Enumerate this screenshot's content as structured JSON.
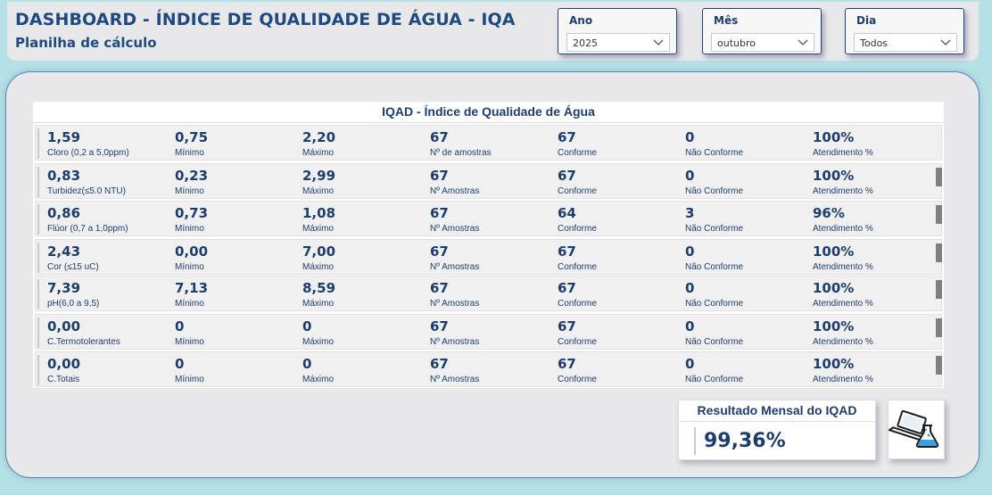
{
  "header": {
    "title": "DASHBOARD - ÍNDICE DE QUALIDADE DE ÁGUA - IQA",
    "subtitle": "Planilha de cálculo"
  },
  "filters": {
    "ano": {
      "label": "Ano",
      "value": "2025"
    },
    "mes": {
      "label": "Mês",
      "value": "outubro"
    },
    "dia": {
      "label": "Dia",
      "value": "Todos"
    }
  },
  "table": {
    "title": "IQAD - Índice de Qualidade de Água",
    "rows": [
      {
        "param_value": "1,59",
        "param_label": "Cloro (0,2 a 5,0ppm)",
        "min_value": "0,75",
        "min_label": "Mínimo",
        "max_value": "2,20",
        "max_label": "Máximo",
        "samples_value": "67",
        "samples_label": "Nº de amostras",
        "conf_value": "67",
        "conf_label": "Conforme",
        "nconf_value": "0",
        "nconf_label": "Não Conforme",
        "att_value": "100%",
        "att_label": "Atendimento %"
      },
      {
        "param_value": "0,83",
        "param_label": "Turbidez(≤5.0 NTU)",
        "min_value": "0,23",
        "min_label": "Mínimo",
        "max_value": "2,99",
        "max_label": "Máximo",
        "samples_value": "67",
        "samples_label": "Nº Amostras",
        "conf_value": "67",
        "conf_label": "Conforme",
        "nconf_value": "0",
        "nconf_label": "Não Conforme",
        "att_value": "100%",
        "att_label": "Atendimento %"
      },
      {
        "param_value": "0,86",
        "param_label": "Flúor (0,7 a 1,0ppm)",
        "min_value": "0,73",
        "min_label": "Mínimo",
        "max_value": "1,08",
        "max_label": "Máximo",
        "samples_value": "67",
        "samples_label": "Nº Amostras",
        "conf_value": "64",
        "conf_label": "Conforme",
        "nconf_value": "3",
        "nconf_label": "Não Conforme",
        "att_value": "96%",
        "att_label": "Atendimento %"
      },
      {
        "param_value": "2,43",
        "param_label": "Cor (≤15 uC)",
        "min_value": "0,00",
        "min_label": "Mínimo",
        "max_value": "7,00",
        "max_label": "Máximo",
        "samples_value": "67",
        "samples_label": "Nº Amostras",
        "conf_value": "67",
        "conf_label": "Conforme",
        "nconf_value": "0",
        "nconf_label": "Não Conforme",
        "att_value": "100%",
        "att_label": "Atendimento %"
      },
      {
        "param_value": "7,39",
        "param_label": "pH(6,0 a 9,5)",
        "min_value": "7,13",
        "min_label": "Mínimo",
        "max_value": "8,59",
        "max_label": "Máximo",
        "samples_value": "67",
        "samples_label": "Nº Amostras",
        "conf_value": "67",
        "conf_label": "Conforme",
        "nconf_value": "0",
        "nconf_label": "Não Conforme",
        "att_value": "100%",
        "att_label": "Atendimento %"
      },
      {
        "param_value": "0,00",
        "param_label": "C.Termotolerantes",
        "min_value": "0",
        "min_label": "Mínimo",
        "max_value": "0",
        "max_label": "Máximo",
        "samples_value": "67",
        "samples_label": "Nº Amostras",
        "conf_value": "67",
        "conf_label": "Conforme",
        "nconf_value": "0",
        "nconf_label": "Não Conforme",
        "att_value": "100%",
        "att_label": "Atendimento %"
      },
      {
        "param_value": "0,00",
        "param_label": "C.Totais",
        "min_value": "0",
        "min_label": "Mínimo",
        "max_value": "0",
        "max_label": "Máximo",
        "samples_value": "67",
        "samples_label": "Nº Amostras",
        "conf_value": "67",
        "conf_label": "Conforme",
        "nconf_value": "0",
        "nconf_label": "Não Conforme",
        "att_value": "100%",
        "att_label": "Atendimento %"
      }
    ]
  },
  "result": {
    "title": "Resultado Mensal do IQAD",
    "value": "99,36%"
  },
  "icons": {
    "dropdown": "chevron-down-icon",
    "result_box": "laptop-flask-icon"
  },
  "colors": {
    "page_background": "#b5e0e6",
    "primary_text": "#1e3d6b",
    "title_text": "#1e4a80",
    "panel_border": "#5a84b8"
  }
}
